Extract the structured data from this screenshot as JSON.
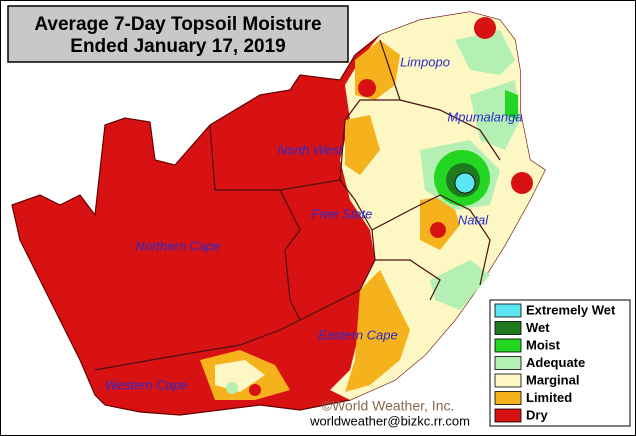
{
  "title": [
    "Average 7-Day Topsoil Moisture",
    "Ended January 17, 2019"
  ],
  "regions": [
    "Limpopo",
    "Mpumalanga",
    "North West",
    "Free State",
    "Natal",
    "Northern Cape",
    "Eastern Cape",
    "Western Cape"
  ],
  "legend": [
    {
      "label": "Extremely Wet",
      "color": "#5ce6f2"
    },
    {
      "label": "Wet",
      "color": "#1f7a1f"
    },
    {
      "label": "Moist",
      "color": "#22d622"
    },
    {
      "label": "Adequate",
      "color": "#b4f0b4"
    },
    {
      "label": "Marginal",
      "color": "#fdf7c3"
    },
    {
      "label": "Limited",
      "color": "#f5b21c"
    },
    {
      "label": "Dry",
      "color": "#d81212"
    }
  ],
  "credit": [
    "©World Weather, Inc.",
    "worldweather@bizkc.rr.com"
  ]
}
